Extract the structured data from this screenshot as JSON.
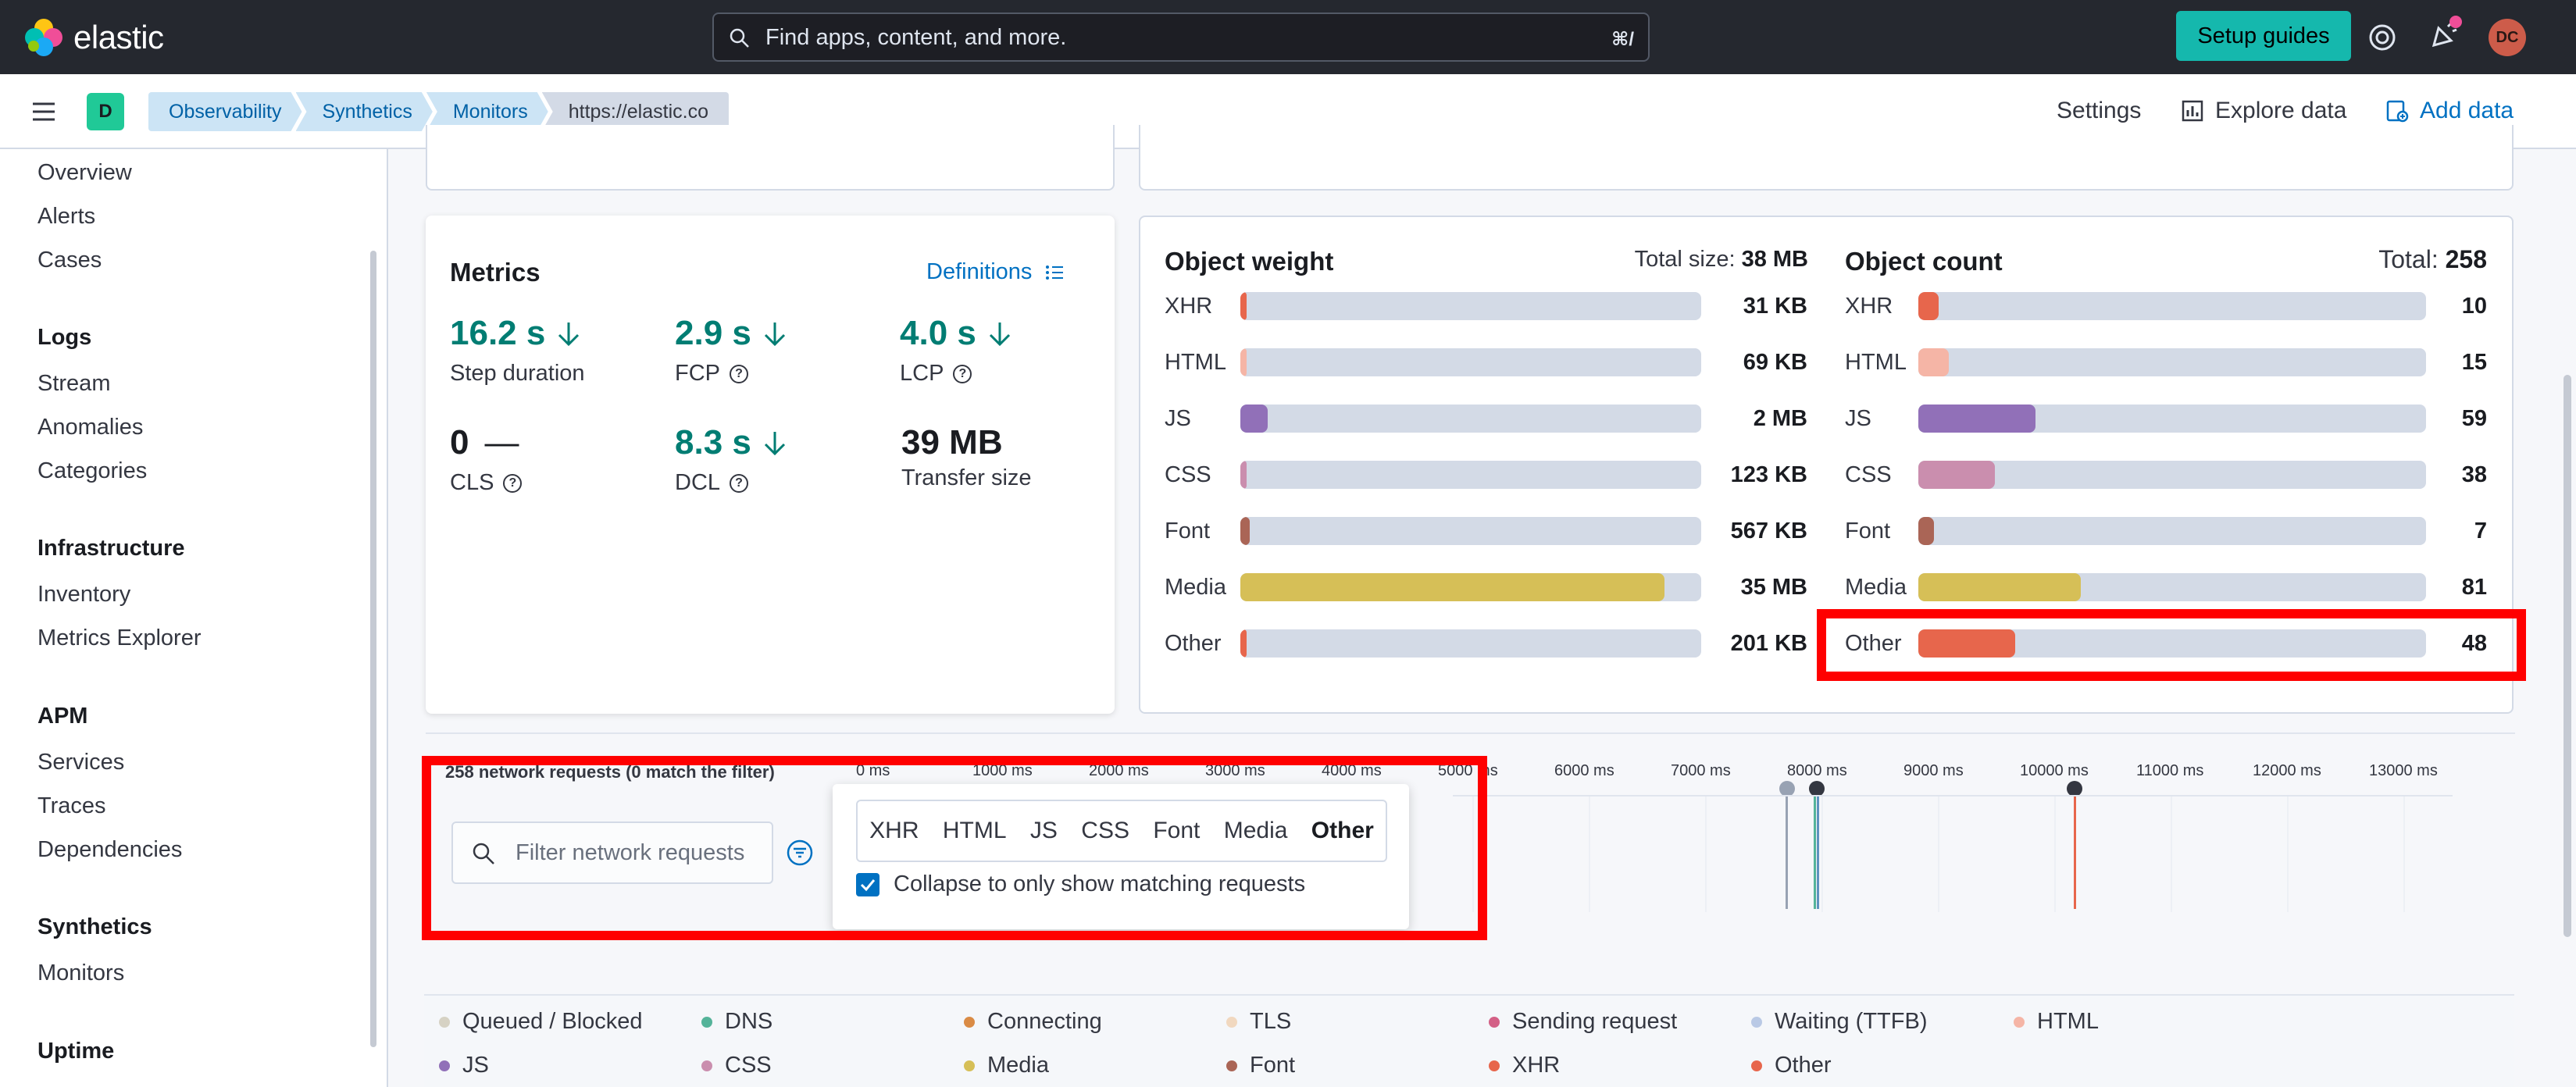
{
  "header": {
    "brand": "elastic",
    "search_placeholder": "Find apps, content, and more.",
    "search_shortcut": "⌘/",
    "setup_guides": "Setup guides",
    "avatar_initials": "DC"
  },
  "nav": {
    "space_initial": "D",
    "breadcrumbs": [
      "Observability",
      "Synthetics",
      "Monitors",
      "https://elastic.co"
    ],
    "settings": "Settings",
    "explore_data": "Explore data",
    "add_data": "Add data"
  },
  "sidebar": {
    "overview": "Overview",
    "alerts": "Alerts",
    "cases": "Cases",
    "logs_heading": "Logs",
    "stream": "Stream",
    "anomalies": "Anomalies",
    "categories": "Categories",
    "infra_heading": "Infrastructure",
    "inventory": "Inventory",
    "metrics_explorer": "Metrics Explorer",
    "apm_heading": "APM",
    "services": "Services",
    "traces": "Traces",
    "dependencies": "Dependencies",
    "synthetics_heading": "Synthetics",
    "monitors": "Monitors",
    "uptime_heading": "Uptime"
  },
  "metrics": {
    "title": "Metrics",
    "definitions": "Definitions",
    "step_duration": {
      "value": "16.2 s",
      "label": "Step duration"
    },
    "fcp": {
      "value": "2.9 s",
      "label": "FCP"
    },
    "lcp": {
      "value": "4.0 s",
      "label": "LCP"
    },
    "cls": {
      "value": "0",
      "dash": "—",
      "label": "CLS"
    },
    "dcl": {
      "value": "8.3 s",
      "label": "DCL"
    },
    "transfer": {
      "value": "39 MB",
      "label": "Transfer size"
    }
  },
  "object_weight": {
    "title": "Object weight",
    "total_label": "Total size:",
    "total_value": "38 MB",
    "rows": [
      {
        "label": "XHR",
        "value": "31 KB",
        "fraction": 0.01,
        "color": "#e7664c"
      },
      {
        "label": "HTML",
        "value": "69 KB",
        "fraction": 0.01,
        "color": "#f5b5a6"
      },
      {
        "label": "JS",
        "value": "2 MB",
        "fraction": 0.06,
        "color": "#9170b8"
      },
      {
        "label": "CSS",
        "value": "123 KB",
        "fraction": 0.01,
        "color": "#ca8eae"
      },
      {
        "label": "Font",
        "value": "567 KB",
        "fraction": 0.02,
        "color": "#aa6556"
      },
      {
        "label": "Media",
        "value": "35 MB",
        "fraction": 0.92,
        "color": "#d6bf57"
      },
      {
        "label": "Other",
        "value": "201 KB",
        "fraction": 0.01,
        "color": "#e7664c"
      }
    ]
  },
  "object_count": {
    "title": "Object count",
    "total_label": "Total:",
    "total_value": "258",
    "rows": [
      {
        "label": "XHR",
        "value": "10",
        "fraction": 0.04,
        "color": "#e7664c"
      },
      {
        "label": "HTML",
        "value": "15",
        "fraction": 0.06,
        "color": "#f5b5a6"
      },
      {
        "label": "JS",
        "value": "59",
        "fraction": 0.23,
        "color": "#9170b8"
      },
      {
        "label": "CSS",
        "value": "38",
        "fraction": 0.15,
        "color": "#ca8eae"
      },
      {
        "label": "Font",
        "value": "7",
        "fraction": 0.03,
        "color": "#aa6556"
      },
      {
        "label": "Media",
        "value": "81",
        "fraction": 0.32,
        "color": "#d6bf57"
      },
      {
        "label": "Other",
        "value": "48",
        "fraction": 0.19,
        "color": "#e7664c"
      }
    ]
  },
  "waterfall": {
    "count_text": "258 network requests (0 match the filter)",
    "ticks": [
      "0 ms",
      "1000 ms",
      "2000 ms",
      "3000 ms",
      "4000 ms",
      "5000 ms",
      "6000 ms",
      "7000 ms",
      "8000 ms",
      "9000 ms",
      "10000 ms",
      "11000 ms",
      "12000 ms",
      "13000 ms"
    ],
    "filter_placeholder": "Filter network requests",
    "mime_filters": [
      "XHR",
      "HTML",
      "JS",
      "CSS",
      "Font",
      "Media",
      "Other"
    ],
    "active_filter": "Other",
    "collapse_label": "Collapse to only show matching requests"
  },
  "legend": [
    {
      "label": "Queued / Blocked",
      "color": "#d6d2c4"
    },
    {
      "label": "DNS",
      "color": "#54b399"
    },
    {
      "label": "Connecting",
      "color": "#da8b45"
    },
    {
      "label": "TLS",
      "color": "#f1d8bf"
    },
    {
      "label": "Sending request",
      "color": "#d36086"
    },
    {
      "label": "Waiting (TTFB)",
      "color": "#b9c9e5"
    },
    {
      "label": "HTML",
      "color": "#f5b5a6"
    },
    {
      "label": "JS",
      "color": "#9170b8"
    },
    {
      "label": "CSS",
      "color": "#ca8eae"
    },
    {
      "label": "Media",
      "color": "#d6bf57"
    },
    {
      "label": "Font",
      "color": "#aa6556"
    },
    {
      "label": "XHR",
      "color": "#e7664c"
    },
    {
      "label": "Other",
      "color": "#e7664c"
    }
  ]
}
